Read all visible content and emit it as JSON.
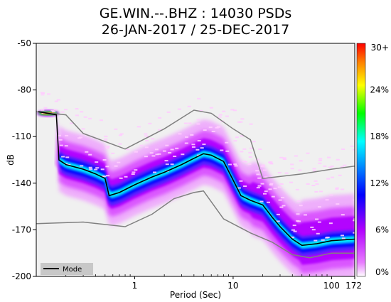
{
  "chart_data": {
    "type": "heatmap",
    "title": "GE.WIN.--.BHZ : 14030 PSDs",
    "subtitle": "26-JAN-2017 / 25-DEC-2017",
    "xlabel": "Period (Sec)",
    "ylabel": "dB",
    "x_scale": "log",
    "xlim": [
      0.1,
      172
    ],
    "ylim": [
      -200,
      -50
    ],
    "x_ticks": [
      {
        "value": 1,
        "label": "1"
      },
      {
        "value": 10,
        "label": "10"
      },
      {
        "value": 100,
        "label": "100"
      },
      {
        "value": 172,
        "label": "172"
      }
    ],
    "y_ticks": [
      {
        "value": -50,
        "label": "-50"
      },
      {
        "value": -80,
        "label": "-80"
      },
      {
        "value": -110,
        "label": "-110"
      },
      {
        "value": -140,
        "label": "-140"
      },
      {
        "value": -170,
        "label": "-170"
      },
      {
        "value": -200,
        "label": "-200"
      }
    ],
    "colorbar": {
      "range": [
        0,
        30
      ],
      "tick_labels": [
        "0%",
        "6%",
        "12%",
        "18%",
        "24%",
        "30+"
      ],
      "colors": [
        "#ffffff",
        "#e87cff",
        "#b100ff",
        "#0000ff",
        "#00aaff",
        "#00ffff",
        "#00ff00",
        "#ffff00",
        "#ff8000",
        "#ff0000"
      ]
    },
    "legend": {
      "position": "bottom-left",
      "entries": [
        {
          "label": "Mode"
        }
      ]
    },
    "mode_curve": [
      [
        0.105,
        -94
      ],
      [
        0.16,
        -96
      ],
      [
        0.17,
        -125
      ],
      [
        0.2,
        -128
      ],
      [
        0.3,
        -131
      ],
      [
        0.4,
        -134
      ],
      [
        0.5,
        -137
      ],
      [
        0.55,
        -148
      ],
      [
        0.7,
        -146
      ],
      [
        1,
        -141
      ],
      [
        1.5,
        -136
      ],
      [
        2,
        -133
      ],
      [
        3,
        -128
      ],
      [
        4,
        -124
      ],
      [
        5,
        -121
      ],
      [
        6,
        -122
      ],
      [
        8,
        -126
      ],
      [
        10,
        -138
      ],
      [
        12,
        -148
      ],
      [
        15,
        -151
      ],
      [
        20,
        -154
      ],
      [
        25,
        -162
      ],
      [
        30,
        -168
      ],
      [
        40,
        -176
      ],
      [
        50,
        -180
      ],
      [
        70,
        -179
      ],
      [
        100,
        -177
      ],
      [
        172,
        -176
      ]
    ],
    "upper_envelope": [
      [
        0.1,
        -94
      ],
      [
        0.2,
        -96
      ],
      [
        0.3,
        -108
      ],
      [
        0.8,
        -118
      ],
      [
        2,
        -105
      ],
      [
        4,
        -93
      ],
      [
        6,
        -95
      ],
      [
        10,
        -105
      ],
      [
        15,
        -112
      ],
      [
        20,
        -137
      ],
      [
        50,
        -134
      ],
      [
        100,
        -131
      ],
      [
        172,
        -129
      ]
    ],
    "lower_envelope": [
      [
        0.1,
        -166
      ],
      [
        0.3,
        -165
      ],
      [
        0.8,
        -168
      ],
      [
        1.5,
        -160
      ],
      [
        2.5,
        -150
      ],
      [
        4,
        -146
      ],
      [
        5,
        -145
      ],
      [
        8,
        -163
      ],
      [
        15,
        -172
      ],
      [
        25,
        -178
      ],
      [
        40,
        -186
      ],
      [
        60,
        -188
      ],
      [
        100,
        -185
      ],
      [
        172,
        -185
      ]
    ],
    "grey_line_color": "#808080",
    "mode_color": "#000000",
    "background_color": "#f0f0f0"
  }
}
